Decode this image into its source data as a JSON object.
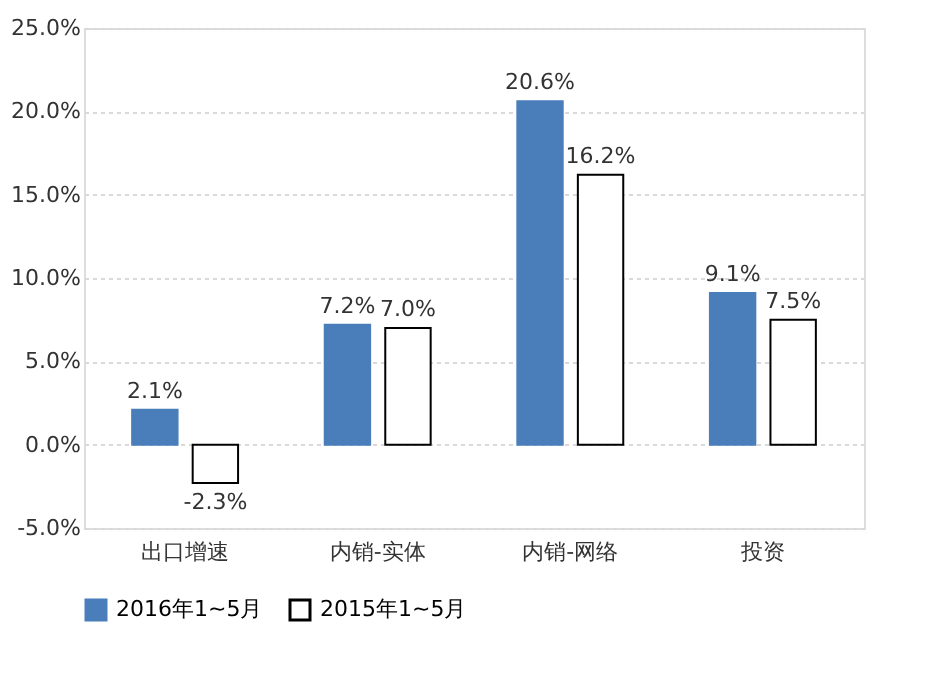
{
  "chart_data": {
    "type": "bar",
    "categories": [
      "出口增速",
      "内销-实体",
      "内销-网络",
      "投资"
    ],
    "series": [
      {
        "name": "2016年1~5月",
        "color": "#4a7ebb",
        "values": [
          2.1,
          7.2,
          20.6,
          9.1
        ]
      },
      {
        "name": "2015年1~5月",
        "color": "#ffffff",
        "values": [
          -2.3,
          7.0,
          16.2,
          7.5
        ]
      }
    ],
    "ylim": [
      -5,
      25
    ],
    "yticks": [
      {
        "value": -5,
        "label": "-5.0%"
      },
      {
        "value": 0,
        "label": "0.0%"
      },
      {
        "value": 5,
        "label": "5.0%"
      },
      {
        "value": 10,
        "label": "10.0%"
      },
      {
        "value": 15,
        "label": "15.0%"
      },
      {
        "value": 20,
        "label": "20.0%"
      },
      {
        "value": 25,
        "label": "25.0%"
      }
    ],
    "value_labels": [
      [
        "2.1%",
        "7.2%",
        "20.6%",
        "9.1%"
      ],
      [
        "-2.3%",
        "7.0%",
        "16.2%",
        "7.5%"
      ]
    ],
    "grid": "y",
    "legend": "bottom"
  }
}
